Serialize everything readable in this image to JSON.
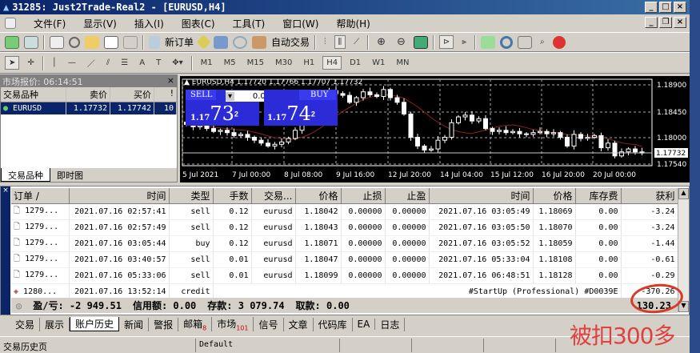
{
  "window": {
    "title": "31285: Just2Trade-Real2 - [EURUSD,H4]"
  },
  "menu": [
    "文件(F)",
    "显示(V)",
    "插入(I)",
    "图表(C)",
    "工具(T)",
    "窗口(W)",
    "帮助(H)"
  ],
  "toolbar": {
    "new_order": "新订单",
    "auto_trade": "自动交易",
    "timeframes": [
      "M1",
      "M5",
      "M15",
      "M30",
      "H1",
      "H4",
      "D1",
      "W1",
      "MN"
    ],
    "active_timeframe": "H4"
  },
  "market_watch": {
    "title": "市场报价: 06:14:51",
    "columns": [
      "交易品种",
      "卖价",
      "买价",
      "!"
    ],
    "rows": [
      {
        "symbol": "EURUSD",
        "bid": "1.17732",
        "ask": "1.17742",
        "spread": "10"
      }
    ],
    "tabs": [
      "交易品种",
      "即时图"
    ]
  },
  "chart": {
    "header": "EURUSD,H4  1.17720 1.17766 1.17707 1.17732",
    "sell": "SELL",
    "buy": "BUY",
    "lot": "0.01",
    "bid_prefix": "1.17",
    "bid_big": "73",
    "bid_sup": "2",
    "ask_prefix": "1.17",
    "ask_big": "74",
    "ask_sup": "2",
    "price_labels": [
      "1.18900",
      "1.18450",
      "1.18000",
      "1.17540"
    ],
    "current_price": "1.17732",
    "time_labels": [
      "5 Jul 2021",
      "7 Jul 00:00",
      "8 Jul 08:00",
      "9 Jul 16:00",
      "12 Jul 20:00",
      "14 Jul 04:00",
      "15 Jul 12:00",
      "16 Jul 20:00",
      "20 Jul 00:00"
    ],
    "colors": {
      "background": "#000000",
      "candle": "#ffffff",
      "bull_fill": "#000000",
      "bear_fill": "#ffffff",
      "ma": "#8b2020",
      "grid": "#ffffff"
    },
    "closes": [
      1.1822,
      1.1818,
      1.182,
      1.1815,
      1.181,
      1.1812,
      1.1808,
      1.1803,
      1.1805,
      1.18,
      1.1795,
      1.179,
      1.1785,
      1.1788,
      1.1792,
      1.1798,
      1.1812,
      1.1835,
      1.185,
      1.1862,
      1.187,
      1.188,
      1.1875,
      1.1872,
      1.186,
      1.1868,
      1.1878,
      1.1873,
      1.187,
      1.1882,
      1.1868,
      1.186,
      1.184,
      1.18,
      1.1785,
      1.1778,
      1.178,
      1.1795,
      1.18,
      1.1825,
      1.1835,
      1.1838,
      1.1828,
      1.1832,
      1.1815,
      1.181,
      1.1812,
      1.1808,
      1.181,
      1.1806,
      1.1805,
      1.1808,
      1.181,
      1.1806,
      1.1808,
      1.18,
      1.1785,
      1.1805,
      1.1798,
      1.18,
      1.1803,
      1.1782,
      1.179,
      1.1768,
      1.1775,
      1.178,
      1.1775,
      1.1773
    ]
  },
  "terminal": {
    "columns": [
      "订单 /",
      "时间",
      "类型",
      "手数",
      "交易...",
      "价格",
      "止损",
      "止盈",
      "时间",
      "价格",
      "库存费",
      "获利"
    ],
    "rows": [
      [
        "1279...",
        "2021.07.16 02:57:41",
        "sell",
        "0.12",
        "eurusd",
        "1.18042",
        "0.00000",
        "0.00000",
        "2021.07.16 03:05:49",
        "1.18069",
        "0.00",
        "-3.24"
      ],
      [
        "1279...",
        "2021.07.16 02:57:49",
        "sell",
        "0.12",
        "eurusd",
        "1.18043",
        "0.00000",
        "0.00000",
        "2021.07.16 03:05:50",
        "1.18070",
        "0.00",
        "-3.24"
      ],
      [
        "1279...",
        "2021.07.16 03:05:44",
        "buy",
        "0.12",
        "eurusd",
        "1.18071",
        "0.00000",
        "0.00000",
        "2021.07.16 03:05:52",
        "1.18059",
        "0.00",
        "-1.44"
      ],
      [
        "1279...",
        "2021.07.16 03:40:57",
        "sell",
        "0.01",
        "eurusd",
        "1.18047",
        "0.00000",
        "0.00000",
        "2021.07.16 05:33:04",
        "1.18108",
        "0.00",
        "-0.61"
      ],
      [
        "1279...",
        "2021.07.16 05:33:06",
        "sell",
        "0.01",
        "eurusd",
        "1.18099",
        "0.00000",
        "0.00000",
        "2021.07.16 06:48:51",
        "1.18128",
        "0.00",
        "-0.29"
      ]
    ],
    "credit_row": {
      "order": "1280...",
      "time": "2021.07.16 13:52:14",
      "type": "credit",
      "comment": "#StartUp (Professional) #D0039E",
      "profit": "-370.26"
    },
    "summary": {
      "pl": "盈/亏: -2 949.51",
      "credit": "信用额: 0.00",
      "deposit": "存款: 3 079.74",
      "withdraw": "取款: 0.00",
      "total": "130.23"
    },
    "tabs": [
      {
        "label": "交易"
      },
      {
        "label": "展示"
      },
      {
        "label": "账户历史",
        "active": true
      },
      {
        "label": "新闻"
      },
      {
        "label": "警报"
      },
      {
        "label": "邮箱",
        "badge": "8"
      },
      {
        "label": "市场",
        "badge": "101"
      },
      {
        "label": "信号"
      },
      {
        "label": "文章"
      },
      {
        "label": "代码库"
      },
      {
        "label": "EA"
      },
      {
        "label": "日志"
      }
    ]
  },
  "status": {
    "left": "交易历史页",
    "profile": "Default"
  },
  "annotation": {
    "text": "被扣300多",
    "color": "#e04040"
  }
}
